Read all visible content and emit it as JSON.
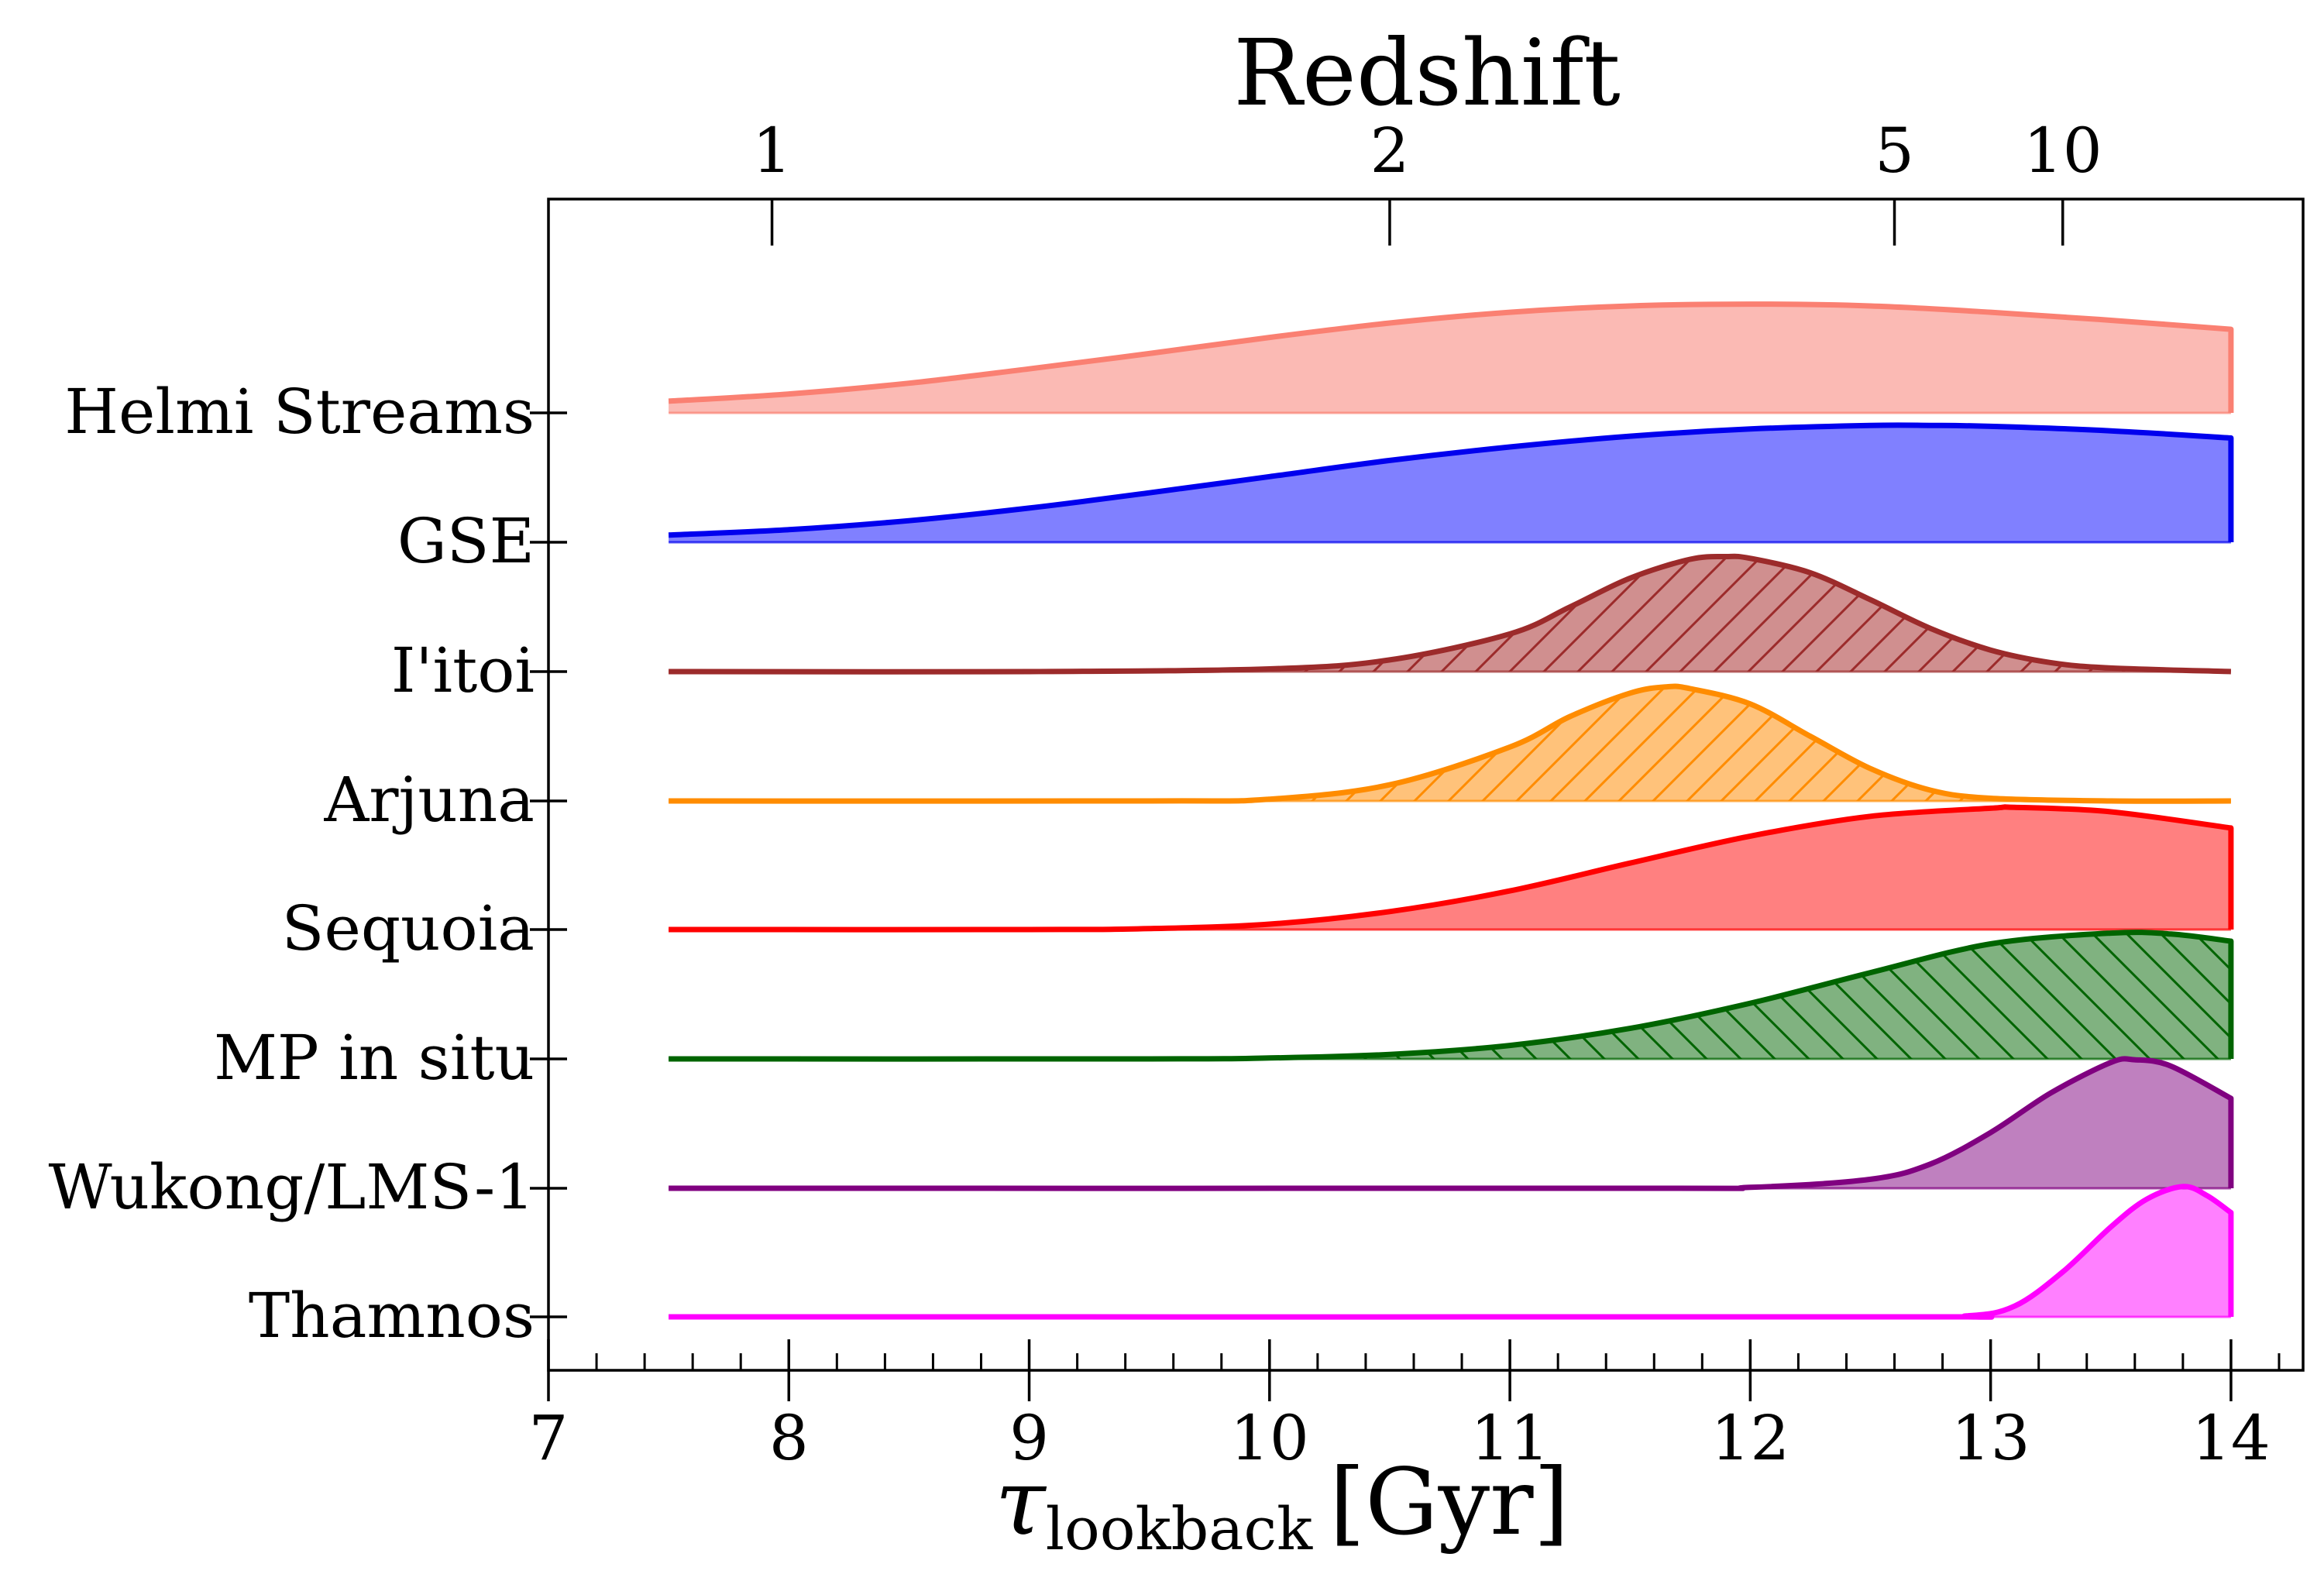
{
  "chart_data": {
    "type": "area",
    "title": "Redshift",
    "xlabel_symbol": "τ",
    "xlabel_subscript": "lookback",
    "xlabel_unit": "[Gyr]",
    "xlim": [
      7,
      14.3
    ],
    "xticks": [
      7,
      8,
      9,
      10,
      11,
      12,
      13,
      14
    ],
    "xtick_labels": [
      "7",
      "8",
      "9",
      "10",
      "11",
      "12",
      "13",
      "14"
    ],
    "x_minor_step": 0.2,
    "top_axis": {
      "label": "Redshift",
      "ticks": [
        {
          "label": "1",
          "lookback_gyr": 7.93
        },
        {
          "label": "2",
          "lookback_gyr": 10.5
        },
        {
          "label": "5",
          "lookback_gyr": 12.6
        },
        {
          "label": "10",
          "lookback_gyr": 13.3
        }
      ]
    },
    "series": [
      {
        "name": "Helmi Streams",
        "color": "#fa8072",
        "fill": "#fbbab4",
        "hatch": false,
        "x": [
          7.5,
          8.0,
          8.5,
          9.0,
          9.5,
          10.0,
          10.5,
          11.0,
          11.5,
          12.0,
          12.5,
          13.0,
          13.5,
          14.0
        ],
        "y": [
          0.13,
          0.21,
          0.33,
          0.49,
          0.66,
          0.84,
          1.0,
          1.12,
          1.19,
          1.21,
          1.19,
          1.12,
          1.03,
          0.93
        ]
      },
      {
        "name": "GSE",
        "color": "#0000ee",
        "fill": "#8080ff",
        "hatch": false,
        "x": [
          7.5,
          8.0,
          8.5,
          9.0,
          9.5,
          10.0,
          10.5,
          11.0,
          11.5,
          12.0,
          12.5,
          12.75,
          13.0,
          13.5,
          14.0
        ],
        "y": [
          0.08,
          0.14,
          0.24,
          0.38,
          0.55,
          0.73,
          0.91,
          1.06,
          1.18,
          1.26,
          1.3,
          1.3,
          1.29,
          1.24,
          1.16
        ]
      },
      {
        "name": "I'itoi",
        "color": "#9c2b2b",
        "fill": "#d08f8f",
        "hatch": true,
        "hatch_dir": "forward",
        "x": [
          7.5,
          9.0,
          10.0,
          10.5,
          11.0,
          11.25,
          11.5,
          11.75,
          11.9,
          12.0,
          12.25,
          12.5,
          12.75,
          13.0,
          13.25,
          13.5,
          14.0
        ],
        "y": [
          0.0,
          0.0,
          0.03,
          0.13,
          0.42,
          0.72,
          1.04,
          1.25,
          1.28,
          1.26,
          1.1,
          0.8,
          0.48,
          0.24,
          0.1,
          0.04,
          0.0
        ]
      },
      {
        "name": "Arjuna",
        "color": "#ff8c00",
        "fill": "#ffc27a",
        "hatch": true,
        "hatch_dir": "forward",
        "x": [
          7.5,
          9.5,
          10.0,
          10.5,
          11.0,
          11.25,
          11.5,
          11.65,
          11.75,
          12.0,
          12.25,
          12.5,
          12.75,
          13.0,
          13.5,
          14.0
        ],
        "y": [
          0.0,
          0.0,
          0.02,
          0.18,
          0.6,
          0.94,
          1.2,
          1.27,
          1.25,
          1.08,
          0.72,
          0.36,
          0.12,
          0.03,
          0.0,
          0.0
        ]
      },
      {
        "name": "Sequoia",
        "color": "#ff0000",
        "fill": "#ff8080",
        "hatch": false,
        "x": [
          7.5,
          9.0,
          9.5,
          10.0,
          10.5,
          11.0,
          11.5,
          12.0,
          12.5,
          13.0,
          13.1,
          13.5,
          14.0
        ],
        "y": [
          0.0,
          0.0,
          0.01,
          0.06,
          0.2,
          0.43,
          0.74,
          1.04,
          1.26,
          1.35,
          1.36,
          1.31,
          1.13
        ]
      },
      {
        "name": "MP in situ",
        "color": "#006400",
        "fill": "#80b280",
        "hatch": true,
        "hatch_dir": "back",
        "x": [
          7.5,
          9.5,
          10.0,
          10.5,
          11.0,
          11.5,
          12.0,
          12.5,
          13.0,
          13.5,
          13.75,
          14.0
        ],
        "y": [
          0.0,
          0.0,
          0.01,
          0.05,
          0.15,
          0.34,
          0.62,
          0.96,
          1.28,
          1.4,
          1.39,
          1.31
        ]
      },
      {
        "name": "Wukong/LMS-1",
        "color": "#800080",
        "fill": "#bf80bf",
        "hatch": false,
        "x": [
          7.5,
          11.5,
          12.0,
          12.5,
          12.75,
          13.0,
          13.25,
          13.5,
          13.6,
          13.75,
          14.0
        ],
        "y": [
          0.0,
          0.0,
          0.01,
          0.1,
          0.27,
          0.62,
          1.06,
          1.4,
          1.43,
          1.36,
          1.0
        ]
      },
      {
        "name": "Thamnos",
        "color": "#ff00ff",
        "fill": "#ff80ff",
        "hatch": false,
        "x": [
          7.5,
          12.5,
          12.9,
          13.1,
          13.3,
          13.5,
          13.65,
          13.8,
          13.9,
          14.0
        ],
        "y": [
          0.0,
          0.0,
          0.01,
          0.12,
          0.5,
          1.0,
          1.31,
          1.45,
          1.35,
          1.16
        ]
      }
    ]
  }
}
